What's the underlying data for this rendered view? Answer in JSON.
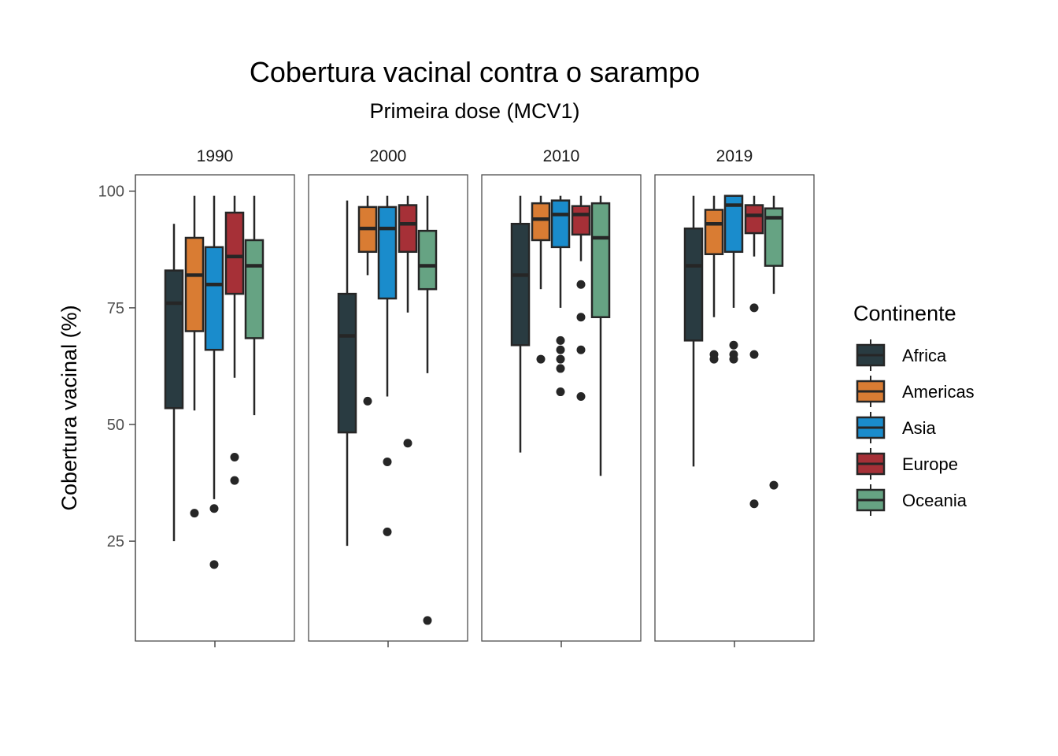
{
  "chart_data": {
    "type": "boxplot",
    "title": "Cobertura vacinal contra o sarampo",
    "subtitle": "Primeira dose (MCV1)",
    "xlabel": "",
    "ylabel": "Cobertura vacinal (%)",
    "ylim": [
      3.6,
      103.5
    ],
    "yticks": [
      25,
      50,
      75,
      100
    ],
    "grid": false,
    "legend": {
      "title": "Continente",
      "position": "right",
      "entries": [
        {
          "name": "Africa",
          "color": "#293B41"
        },
        {
          "name": "Americas",
          "color": "#D97C33"
        },
        {
          "name": "Asia",
          "color": "#1A8CCC"
        },
        {
          "name": "Europe",
          "color": "#A63037"
        },
        {
          "name": "Oceania",
          "color": "#66A383"
        }
      ]
    },
    "facets": [
      {
        "label": "1990",
        "boxes": [
          {
            "group": "Africa",
            "min": 25,
            "q1": 53.5,
            "median": 76,
            "q3": 83,
            "max": 93,
            "outliers": []
          },
          {
            "group": "Americas",
            "min": 53,
            "q1": 70,
            "median": 82,
            "q3": 90,
            "max": 99,
            "outliers": [
              31
            ]
          },
          {
            "group": "Asia",
            "min": 34,
            "q1": 66,
            "median": 80,
            "q3": 88,
            "max": 99,
            "outliers": [
              32,
              20
            ]
          },
          {
            "group": "Europe",
            "min": 60,
            "q1": 78,
            "median": 86,
            "q3": 95.4,
            "max": 99,
            "outliers": [
              43,
              38
            ]
          },
          {
            "group": "Oceania",
            "min": 52,
            "q1": 68.5,
            "median": 84,
            "q3": 89.5,
            "max": 99,
            "outliers": []
          }
        ]
      },
      {
        "label": "2000",
        "boxes": [
          {
            "group": "Africa",
            "min": 24,
            "q1": 48.3,
            "median": 69,
            "q3": 78,
            "max": 98,
            "outliers": []
          },
          {
            "group": "Americas",
            "min": 82,
            "q1": 87,
            "median": 92,
            "q3": 96.6,
            "max": 99,
            "outliers": [
              55
            ]
          },
          {
            "group": "Asia",
            "min": 56,
            "q1": 77,
            "median": 92,
            "q3": 96.6,
            "max": 99,
            "outliers": [
              42,
              27
            ]
          },
          {
            "group": "Europe",
            "min": 74,
            "q1": 87,
            "median": 93,
            "q3": 97,
            "max": 99,
            "outliers": [
              46
            ]
          },
          {
            "group": "Oceania",
            "min": 61,
            "q1": 79,
            "median": 84,
            "q3": 91.5,
            "max": 99,
            "outliers": [
              8
            ]
          }
        ]
      },
      {
        "label": "2010",
        "boxes": [
          {
            "group": "Africa",
            "min": 44,
            "q1": 67,
            "median": 82,
            "q3": 93,
            "max": 99,
            "outliers": []
          },
          {
            "group": "Americas",
            "min": 79,
            "q1": 89.5,
            "median": 94,
            "q3": 97.4,
            "max": 99,
            "outliers": [
              64
            ]
          },
          {
            "group": "Asia",
            "min": 75,
            "q1": 88,
            "median": 95,
            "q3": 98,
            "max": 99,
            "outliers": [
              68,
              66,
              64,
              62,
              57
            ]
          },
          {
            "group": "Europe",
            "min": 85,
            "q1": 90.7,
            "median": 95,
            "q3": 96.8,
            "max": 99,
            "outliers": [
              80,
              73,
              66,
              56
            ]
          },
          {
            "group": "Oceania",
            "min": 39,
            "q1": 73,
            "median": 90,
            "q3": 97.4,
            "max": 99,
            "outliers": []
          }
        ]
      },
      {
        "label": "2019",
        "boxes": [
          {
            "group": "Africa",
            "min": 41,
            "q1": 68,
            "median": 84,
            "q3": 92,
            "max": 99,
            "outliers": []
          },
          {
            "group": "Americas",
            "min": 73,
            "q1": 86.5,
            "median": 93,
            "q3": 96,
            "max": 99,
            "outliers": [
              65,
              64
            ]
          },
          {
            "group": "Asia",
            "min": 75,
            "q1": 87,
            "median": 97,
            "q3": 99,
            "max": 99,
            "outliers": [
              67,
              65,
              64
            ]
          },
          {
            "group": "Europe",
            "min": 86,
            "q1": 91,
            "median": 94.8,
            "q3": 97,
            "max": 99,
            "outliers": [
              75,
              65,
              33
            ]
          },
          {
            "group": "Oceania",
            "min": 78,
            "q1": 84,
            "median": 94.3,
            "q3": 96.3,
            "max": 99,
            "outliers": [
              37
            ]
          }
        ]
      }
    ]
  }
}
